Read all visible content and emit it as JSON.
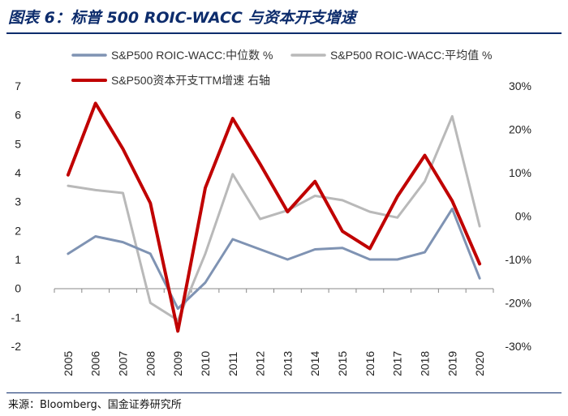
{
  "figure": {
    "title": "图表 6：标普 500 ROIC-WACC 与资本开支增速",
    "source": "来源：Bloomberg、国金证券研究所"
  },
  "chart_data": {
    "type": "line",
    "categories": [
      "2005",
      "2006",
      "2007",
      "2008",
      "2009",
      "2010",
      "2011",
      "2012",
      "2013",
      "2014",
      "2015",
      "2016",
      "2017",
      "2018",
      "2019",
      "2020"
    ],
    "left_axis": {
      "ylim": [
        -2,
        7
      ],
      "ticks": [
        "-2",
        "-1",
        "0",
        "1",
        "2",
        "3",
        "4",
        "5",
        "6",
        "7"
      ]
    },
    "right_axis": {
      "ylim": [
        -30,
        30
      ],
      "unit": "%",
      "ticks": [
        "-30%",
        "-20%",
        "-10%",
        "0%",
        "10%",
        "20%",
        "30%"
      ]
    },
    "series": [
      {
        "name": "S&P500 ROIC-WACC:中位数 %",
        "axis": "left",
        "color": "#7f93b3",
        "values": [
          1.2,
          1.8,
          1.6,
          1.2,
          -0.7,
          0.2,
          1.7,
          1.35,
          1.0,
          1.35,
          1.4,
          1.0,
          1.0,
          1.25,
          2.75,
          0.35
        ]
      },
      {
        "name": "S&P500 ROIC-WACC:平均值 %",
        "axis": "left",
        "color": "#b9b9b9",
        "values": [
          3.55,
          3.4,
          3.3,
          -0.5,
          -1.1,
          1.2,
          3.95,
          2.4,
          2.7,
          3.2,
          3.05,
          2.65,
          2.45,
          3.7,
          5.95,
          2.15
        ]
      },
      {
        "name": "S&P500资本开支TTM增速 右轴",
        "axis": "right",
        "color": "#c00000",
        "values": [
          9.5,
          26.0,
          15.5,
          3.0,
          -26.5,
          6.5,
          22.5,
          12.0,
          1.0,
          8.0,
          -3.5,
          -7.5,
          4.5,
          14.0,
          3.5,
          -11.0
        ]
      }
    ]
  }
}
